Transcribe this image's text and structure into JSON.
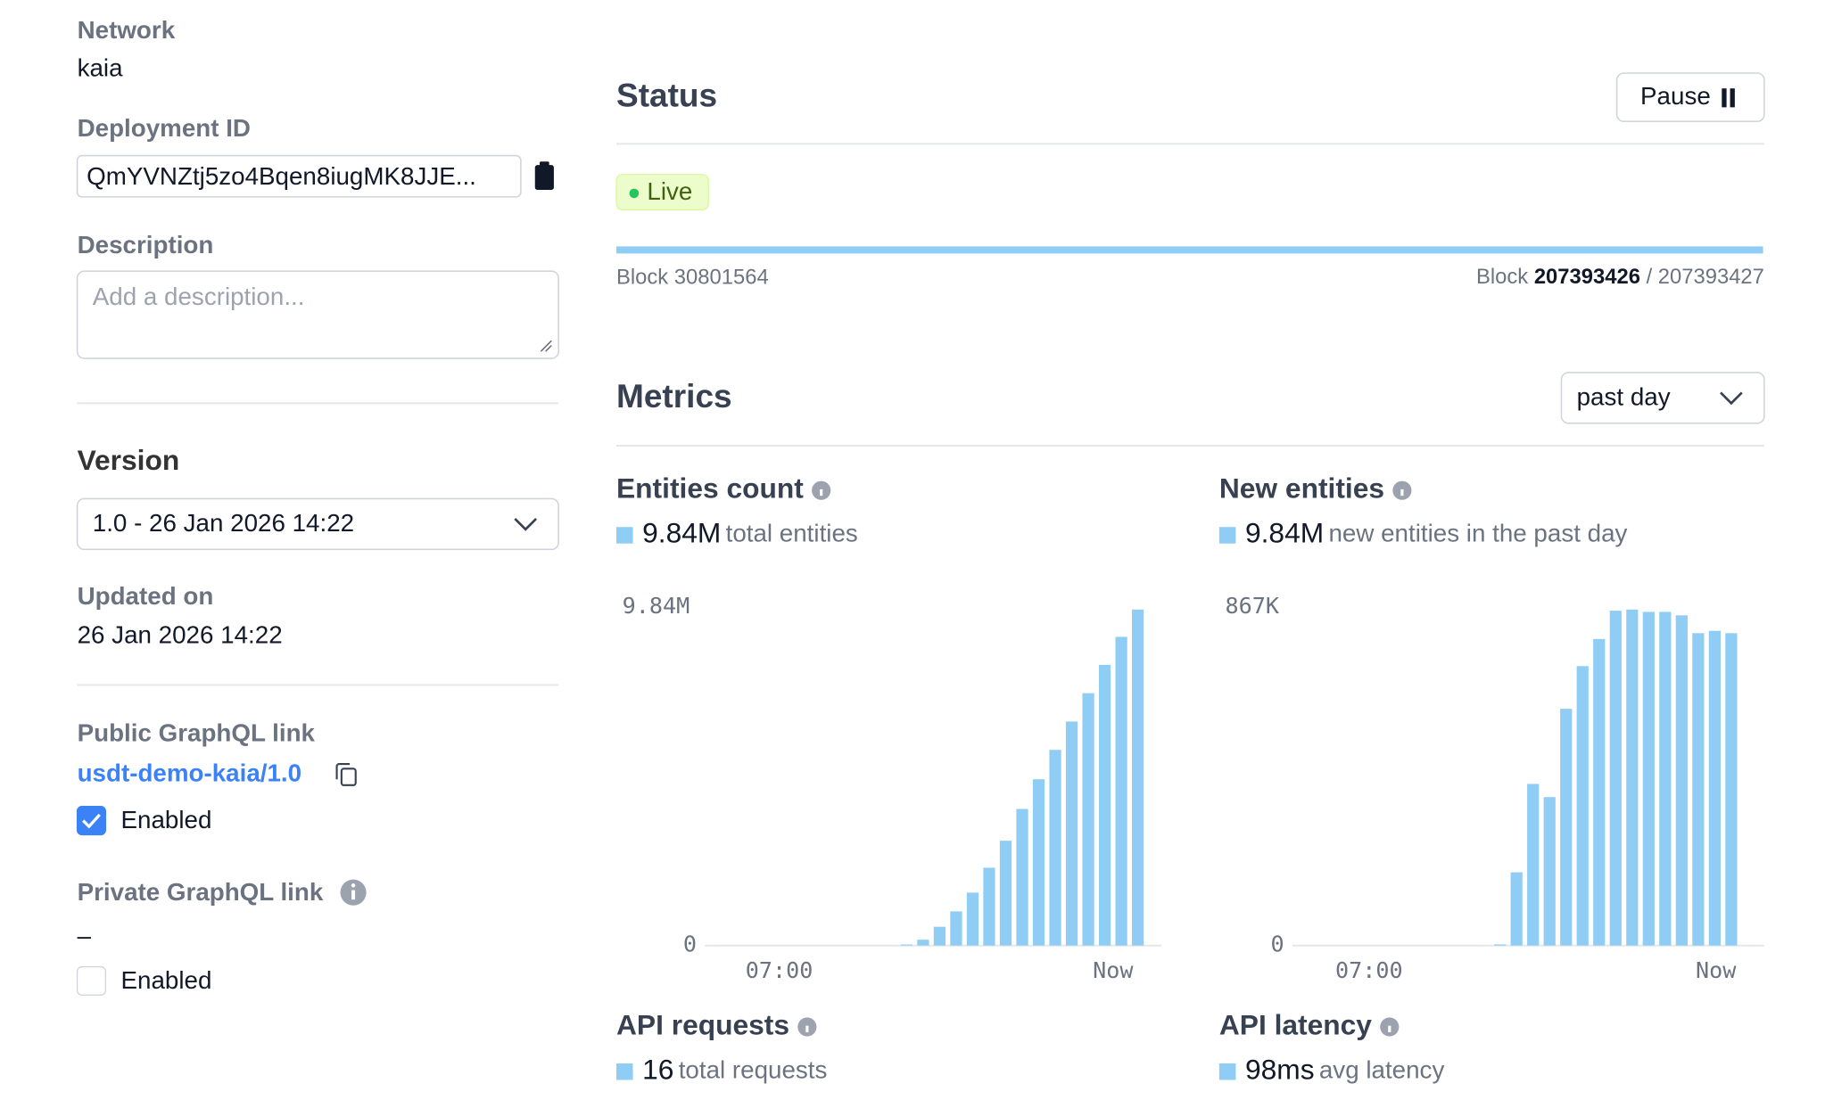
{
  "sidebar": {
    "network": {
      "label": "Network",
      "value": "kaia"
    },
    "deployment_id": {
      "label": "Deployment ID",
      "value": "QmYVNZtj5zo4Bqen8iugMK8JJE..."
    },
    "description": {
      "label": "Description",
      "placeholder": "Add a description..."
    },
    "version": {
      "label": "Version",
      "value": "1.0 - 26 Jan 2026 14:22"
    },
    "updated": {
      "label": "Updated on",
      "value": "26 Jan 2026 14:22"
    },
    "public_graphql": {
      "label": "Public GraphQL link",
      "link": "usdt-demo-kaia/1.0",
      "enabled_label": "Enabled",
      "enabled": true
    },
    "private_graphql": {
      "label": "Private GraphQL link",
      "value": "–",
      "enabled_label": "Enabled",
      "enabled": false
    }
  },
  "status": {
    "title": "Status",
    "button": "Pause",
    "badge": "Live",
    "block_start": "Block 30801564",
    "block_prefix": "Block",
    "block_current": "207393426",
    "block_total": "/ 207393427"
  },
  "metrics": {
    "title": "Metrics",
    "range": "past day",
    "cards": [
      {
        "title": "API requests",
        "stat": "16",
        "stat_label": "total requests"
      },
      {
        "title": "API latency",
        "stat": "98ms",
        "stat_label": "avg latency"
      }
    ]
  },
  "chart_data": [
    {
      "type": "bar",
      "title": "Entities count",
      "stat": "9.84M",
      "stat_label": "total entities",
      "color": "#90cdf4",
      "ylim": [
        0,
        9840000
      ],
      "yticks": [
        0,
        {
          "value": 9840000,
          "label": "9.84M"
        }
      ],
      "x_labels": [
        "07:00",
        "Now"
      ],
      "values": [
        0,
        0,
        0,
        0,
        0,
        0,
        0,
        0,
        0,
        0,
        0,
        30000,
        170000,
        550000,
        1000000,
        1550000,
        2280000,
        3070000,
        4000000,
        4870000,
        5730000,
        6560000,
        7390000,
        8220000,
        9040000,
        9840000
      ]
    },
    {
      "type": "bar",
      "title": "New entities",
      "stat": "9.84M",
      "stat_label": "new entities in the past day",
      "color": "#90cdf4",
      "ylim": [
        0,
        867000
      ],
      "yticks": [
        0,
        {
          "value": 867000,
          "label": "867K"
        }
      ],
      "x_labels": [
        "07:00",
        "Now"
      ],
      "values": [
        0,
        0,
        0,
        0,
        0,
        0,
        0,
        0,
        0,
        0,
        0,
        3000,
        189000,
        417000,
        383000,
        611000,
        721000,
        791000,
        864000,
        867000,
        861000,
        861000,
        852000,
        806000,
        812000,
        806000
      ]
    }
  ]
}
